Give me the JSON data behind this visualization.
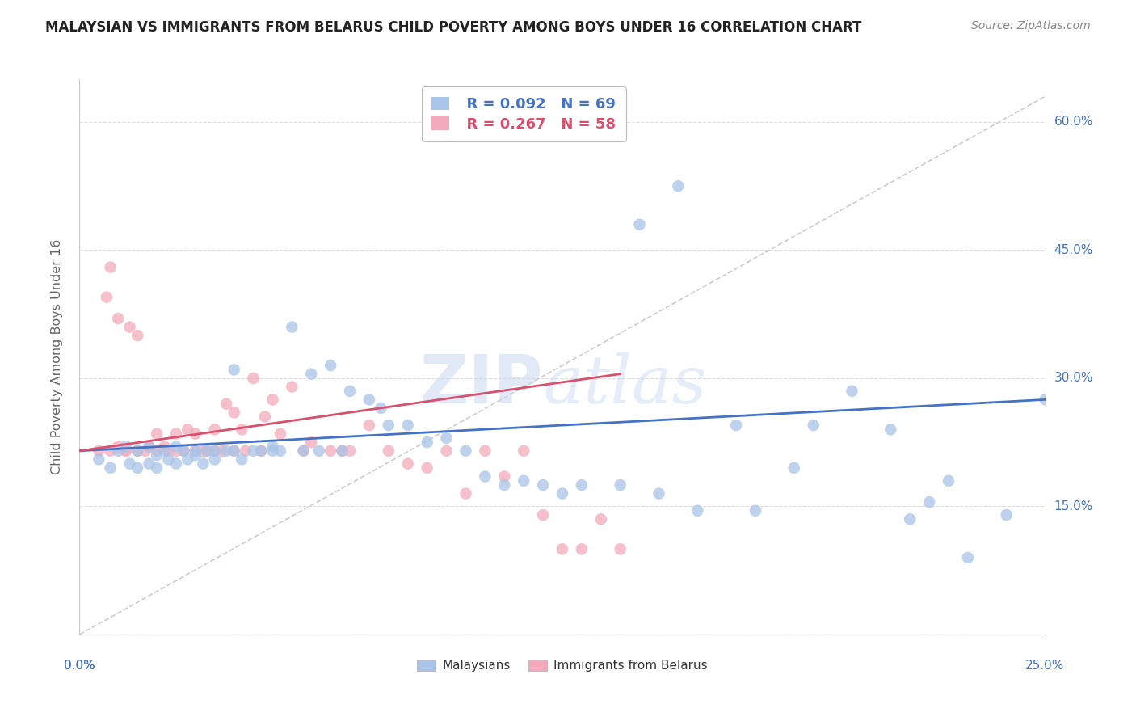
{
  "title": "MALAYSIAN VS IMMIGRANTS FROM BELARUS CHILD POVERTY AMONG BOYS UNDER 16 CORRELATION CHART",
  "source": "Source: ZipAtlas.com",
  "ylabel": "Child Poverty Among Boys Under 16",
  "y_ticks": [
    0.0,
    0.15,
    0.3,
    0.45,
    0.6
  ],
  "y_tick_labels": [
    "",
    "15.0%",
    "30.0%",
    "45.0%",
    "60.0%"
  ],
  "x_range": [
    0.0,
    0.25
  ],
  "y_range": [
    0.0,
    0.65
  ],
  "legend_R1": "R = 0.092",
  "legend_N1": "N = 69",
  "legend_R2": "R = 0.267",
  "legend_N2": "N = 58",
  "legend_label1": "Malaysians",
  "legend_label2": "Immigrants from Belarus",
  "color_blue": "#a8c4e8",
  "color_pink": "#f4aabc",
  "color_blue_line": "#4472c4",
  "color_pink_line": "#d94f6e",
  "watermark_zip": "ZIP",
  "watermark_atlas": "atlas",
  "diag_line_color": "#cccccc",
  "grid_color": "#dddddd",
  "malaysian_x": [
    0.005,
    0.008,
    0.01,
    0.012,
    0.013,
    0.015,
    0.015,
    0.018,
    0.018,
    0.02,
    0.02,
    0.022,
    0.023,
    0.025,
    0.025,
    0.027,
    0.028,
    0.03,
    0.03,
    0.032,
    0.033,
    0.035,
    0.035,
    0.038,
    0.04,
    0.04,
    0.042,
    0.045,
    0.047,
    0.05,
    0.05,
    0.052,
    0.055,
    0.058,
    0.06,
    0.062,
    0.065,
    0.068,
    0.07,
    0.075,
    0.078,
    0.08,
    0.085,
    0.09,
    0.095,
    0.1,
    0.105,
    0.11,
    0.115,
    0.12,
    0.125,
    0.13,
    0.14,
    0.145,
    0.15,
    0.155,
    0.16,
    0.17,
    0.175,
    0.185,
    0.19,
    0.2,
    0.21,
    0.215,
    0.22,
    0.225,
    0.23,
    0.24,
    0.25
  ],
  "malaysian_y": [
    0.205,
    0.195,
    0.215,
    0.22,
    0.2,
    0.195,
    0.215,
    0.22,
    0.2,
    0.21,
    0.195,
    0.215,
    0.205,
    0.2,
    0.22,
    0.215,
    0.205,
    0.21,
    0.215,
    0.2,
    0.215,
    0.215,
    0.205,
    0.215,
    0.31,
    0.215,
    0.205,
    0.215,
    0.215,
    0.22,
    0.215,
    0.215,
    0.36,
    0.215,
    0.305,
    0.215,
    0.315,
    0.215,
    0.285,
    0.275,
    0.265,
    0.245,
    0.245,
    0.225,
    0.23,
    0.215,
    0.185,
    0.175,
    0.18,
    0.175,
    0.165,
    0.175,
    0.175,
    0.48,
    0.165,
    0.525,
    0.145,
    0.245,
    0.145,
    0.195,
    0.245,
    0.285,
    0.24,
    0.135,
    0.155,
    0.18,
    0.09,
    0.14,
    0.275
  ],
  "belarus_x": [
    0.005,
    0.007,
    0.008,
    0.01,
    0.01,
    0.012,
    0.013,
    0.015,
    0.015,
    0.017,
    0.018,
    0.02,
    0.02,
    0.022,
    0.023,
    0.025,
    0.025,
    0.027,
    0.028,
    0.03,
    0.03,
    0.032,
    0.033,
    0.035,
    0.035,
    0.037,
    0.038,
    0.04,
    0.04,
    0.042,
    0.043,
    0.045,
    0.047,
    0.048,
    0.05,
    0.052,
    0.055,
    0.058,
    0.06,
    0.065,
    0.068,
    0.07,
    0.075,
    0.08,
    0.085,
    0.09,
    0.095,
    0.1,
    0.105,
    0.11,
    0.115,
    0.12,
    0.125,
    0.13,
    0.135,
    0.14,
    0.008,
    0.012
  ],
  "belarus_y": [
    0.215,
    0.395,
    0.43,
    0.22,
    0.37,
    0.215,
    0.36,
    0.215,
    0.35,
    0.215,
    0.22,
    0.235,
    0.215,
    0.22,
    0.215,
    0.235,
    0.215,
    0.215,
    0.24,
    0.235,
    0.215,
    0.215,
    0.215,
    0.215,
    0.24,
    0.215,
    0.27,
    0.215,
    0.26,
    0.24,
    0.215,
    0.3,
    0.215,
    0.255,
    0.275,
    0.235,
    0.29,
    0.215,
    0.225,
    0.215,
    0.215,
    0.215,
    0.245,
    0.215,
    0.2,
    0.195,
    0.215,
    0.165,
    0.215,
    0.185,
    0.215,
    0.14,
    0.1,
    0.1,
    0.135,
    0.1,
    0.215,
    0.215
  ],
  "blue_trend": [
    0.215,
    0.275
  ],
  "pink_trend_x": [
    0.0,
    0.14
  ],
  "pink_trend_y": [
    0.215,
    0.305
  ]
}
